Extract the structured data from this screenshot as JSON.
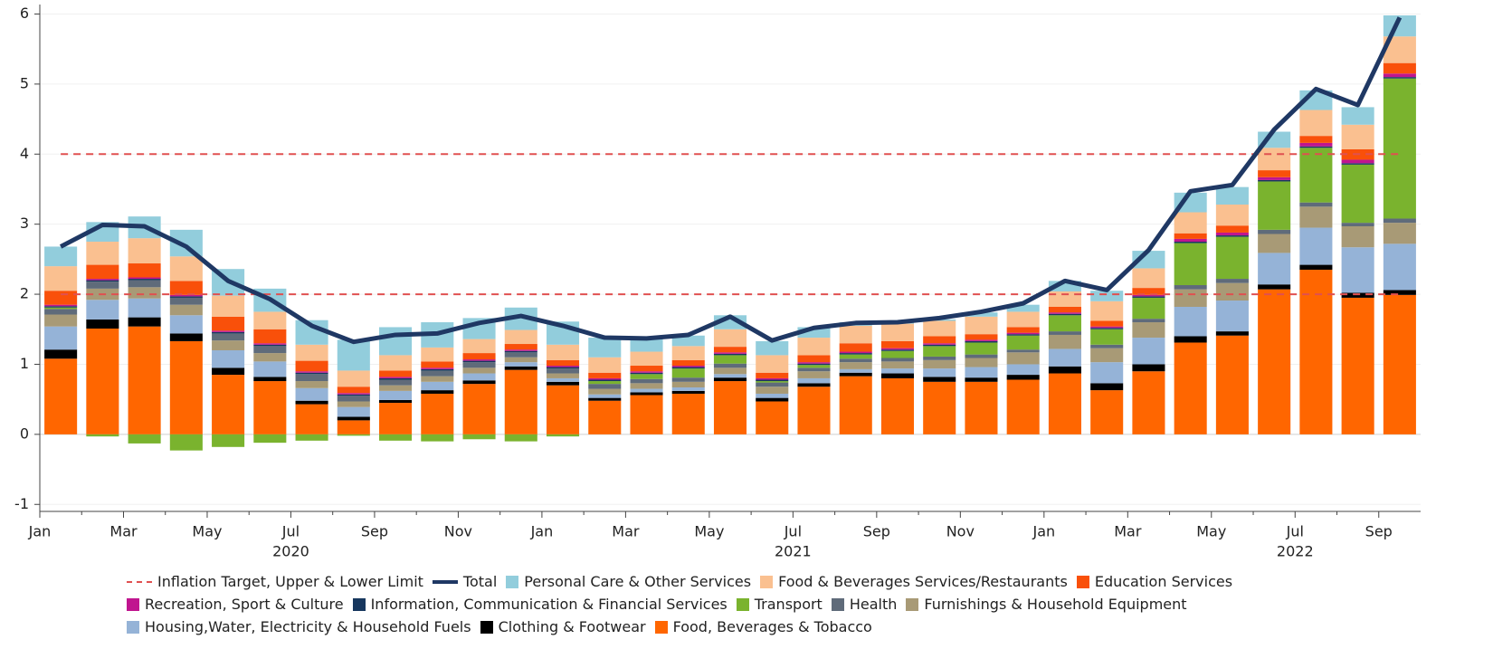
{
  "chart_data": {
    "type": "bar",
    "stacked": true,
    "categories": [
      "Jan",
      null,
      "Mar",
      null,
      "May",
      null,
      "Jul",
      null,
      "Sep",
      null,
      "Nov",
      null,
      "Jan",
      null,
      "Mar",
      null,
      "May",
      null,
      "Jul",
      null,
      "Sep",
      null,
      "Nov",
      null,
      "Jan",
      null,
      "Mar",
      null,
      "May",
      null,
      "Jul",
      null,
      "Sep"
    ],
    "years": [
      "2020",
      "2021",
      "2022"
    ],
    "ylim": [
      -1.1,
      6.2
    ],
    "yticks": [
      -1,
      0,
      1,
      2,
      3,
      4,
      5,
      6
    ],
    "grid": true,
    "target": {
      "name": "Inflation Target, Upper & Lower Limit",
      "color": "#e05050",
      "values": [
        2,
        4
      ]
    },
    "total": {
      "name": "Total",
      "color": "#1f3864",
      "values": [
        2.68,
        2.99,
        2.97,
        2.68,
        2.19,
        1.93,
        1.55,
        1.32,
        1.42,
        1.44,
        1.59,
        1.69,
        1.55,
        1.38,
        1.37,
        1.42,
        1.68,
        1.34,
        1.52,
        1.59,
        1.6,
        1.66,
        1.75,
        1.87,
        2.19,
        2.06,
        2.63,
        3.47,
        3.56,
        4.35,
        4.93,
        4.7,
        5.95
      ]
    },
    "series": [
      {
        "name": "Personal Care & Other Services",
        "color": "#92cddc",
        "values": [
          0.28,
          0.28,
          0.31,
          0.38,
          0.38,
          0.33,
          0.35,
          0.44,
          0.4,
          0.36,
          0.3,
          0.32,
          0.33,
          0.28,
          0.2,
          0.15,
          0.2,
          0.2,
          0.15,
          0.05,
          0.03,
          0.02,
          0.06,
          0.1,
          0.15,
          0.15,
          0.25,
          0.28,
          0.25,
          0.23,
          0.28,
          0.25,
          0.3
        ]
      },
      {
        "name": "Food & Beverages Services/Restaurants",
        "color": "#fac090",
        "values": [
          0.35,
          0.33,
          0.36,
          0.35,
          0.3,
          0.25,
          0.23,
          0.23,
          0.22,
          0.2,
          0.2,
          0.2,
          0.22,
          0.22,
          0.2,
          0.2,
          0.25,
          0.25,
          0.25,
          0.25,
          0.25,
          0.22,
          0.25,
          0.22,
          0.22,
          0.28,
          0.28,
          0.3,
          0.3,
          0.32,
          0.37,
          0.35,
          0.38
        ]
      },
      {
        "name": "Education Services",
        "color": "#f9500a",
        "values": [
          0.2,
          0.2,
          0.2,
          0.2,
          0.2,
          0.2,
          0.15,
          0.09,
          0.09,
          0.09,
          0.09,
          0.08,
          0.08,
          0.08,
          0.08,
          0.08,
          0.08,
          0.08,
          0.1,
          0.12,
          0.1,
          0.1,
          0.08,
          0.08,
          0.08,
          0.08,
          0.1,
          0.08,
          0.1,
          0.1,
          0.1,
          0.15,
          0.15
        ]
      },
      {
        "name": "Recreation, Sport & Culture",
        "color": "#c0158f",
        "values": [
          0.02,
          0.02,
          0.02,
          0.02,
          0.02,
          0.02,
          0.02,
          0.02,
          0.02,
          0.02,
          0.02,
          0.02,
          0.02,
          0.02,
          0.02,
          0.02,
          0.02,
          0.02,
          0.02,
          0.02,
          0.02,
          0.02,
          0.02,
          0.02,
          0.02,
          0.02,
          0.02,
          0.04,
          0.04,
          0.04,
          0.05,
          0.05,
          0.05
        ]
      },
      {
        "name": "Information, Communication & Financial Services",
        "color": "#17375e",
        "values": [
          0.02,
          0.02,
          0.02,
          0.02,
          0.02,
          0.02,
          0.02,
          0.02,
          0.02,
          0.02,
          0.02,
          0.02,
          0.02,
          0.02,
          0.02,
          0.02,
          0.02,
          0.02,
          0.02,
          0.02,
          0.02,
          0.02,
          0.02,
          0.02,
          0.02,
          0.02,
          0.02,
          0.02,
          0.02,
          0.02,
          0.02,
          0.02,
          0.02
        ]
      },
      {
        "name": "Transport",
        "color": "#7ab32e",
        "values": [
          0.02,
          -0.03,
          -0.13,
          -0.23,
          -0.18,
          -0.12,
          -0.09,
          -0.02,
          -0.09,
          -0.1,
          -0.07,
          -0.1,
          -0.03,
          0.04,
          0.07,
          0.13,
          0.12,
          0.02,
          0.04,
          0.06,
          0.1,
          0.15,
          0.17,
          0.2,
          0.23,
          0.22,
          0.3,
          0.6,
          0.6,
          0.69,
          0.78,
          0.83,
          2.0
        ]
      },
      {
        "name": "Health",
        "color": "#5f6b7a",
        "values": [
          0.08,
          0.1,
          0.1,
          0.1,
          0.1,
          0.1,
          0.1,
          0.08,
          0.08,
          0.08,
          0.08,
          0.07,
          0.07,
          0.07,
          0.06,
          0.06,
          0.06,
          0.06,
          0.05,
          0.05,
          0.05,
          0.05,
          0.05,
          0.04,
          0.05,
          0.05,
          0.05,
          0.06,
          0.06,
          0.06,
          0.06,
          0.05,
          0.06
        ]
      },
      {
        "name": "Furnishings & Household Equipment",
        "color": "#a89a76",
        "values": [
          0.17,
          0.16,
          0.16,
          0.15,
          0.14,
          0.12,
          0.1,
          0.08,
          0.08,
          0.08,
          0.08,
          0.07,
          0.07,
          0.08,
          0.08,
          0.08,
          0.09,
          0.1,
          0.1,
          0.1,
          0.1,
          0.12,
          0.13,
          0.17,
          0.2,
          0.2,
          0.22,
          0.25,
          0.25,
          0.27,
          0.3,
          0.3,
          0.3
        ]
      },
      {
        "name": "Housing,Water, Electricity & Household Fuels",
        "color": "#95b3d7",
        "values": [
          0.33,
          0.28,
          0.27,
          0.26,
          0.25,
          0.22,
          0.18,
          0.14,
          0.13,
          0.12,
          0.1,
          0.06,
          0.05,
          0.05,
          0.05,
          0.05,
          0.05,
          0.06,
          0.07,
          0.05,
          0.07,
          0.12,
          0.15,
          0.15,
          0.25,
          0.3,
          0.38,
          0.42,
          0.44,
          0.45,
          0.53,
          0.65,
          0.66
        ]
      },
      {
        "name": "Clothing & Footwear",
        "color": "#000000",
        "values": [
          0.13,
          0.13,
          0.13,
          0.11,
          0.1,
          0.06,
          0.05,
          0.05,
          0.04,
          0.05,
          0.05,
          0.05,
          0.05,
          0.04,
          0.04,
          0.04,
          0.05,
          0.05,
          0.05,
          0.05,
          0.07,
          0.07,
          0.06,
          0.07,
          0.1,
          0.1,
          0.1,
          0.09,
          0.06,
          0.07,
          0.07,
          0.07,
          0.07
        ]
      },
      {
        "name": "Food, Beverages & Tobacco",
        "color": "#ff6600",
        "values": [
          1.08,
          1.51,
          1.54,
          1.33,
          0.85,
          0.76,
          0.43,
          0.2,
          0.45,
          0.58,
          0.72,
          0.92,
          0.7,
          0.48,
          0.56,
          0.58,
          0.76,
          0.47,
          0.68,
          0.83,
          0.8,
          0.75,
          0.75,
          0.78,
          0.87,
          0.63,
          0.9,
          1.31,
          1.41,
          2.07,
          2.35,
          1.95,
          1.99
        ]
      }
    ]
  }
}
